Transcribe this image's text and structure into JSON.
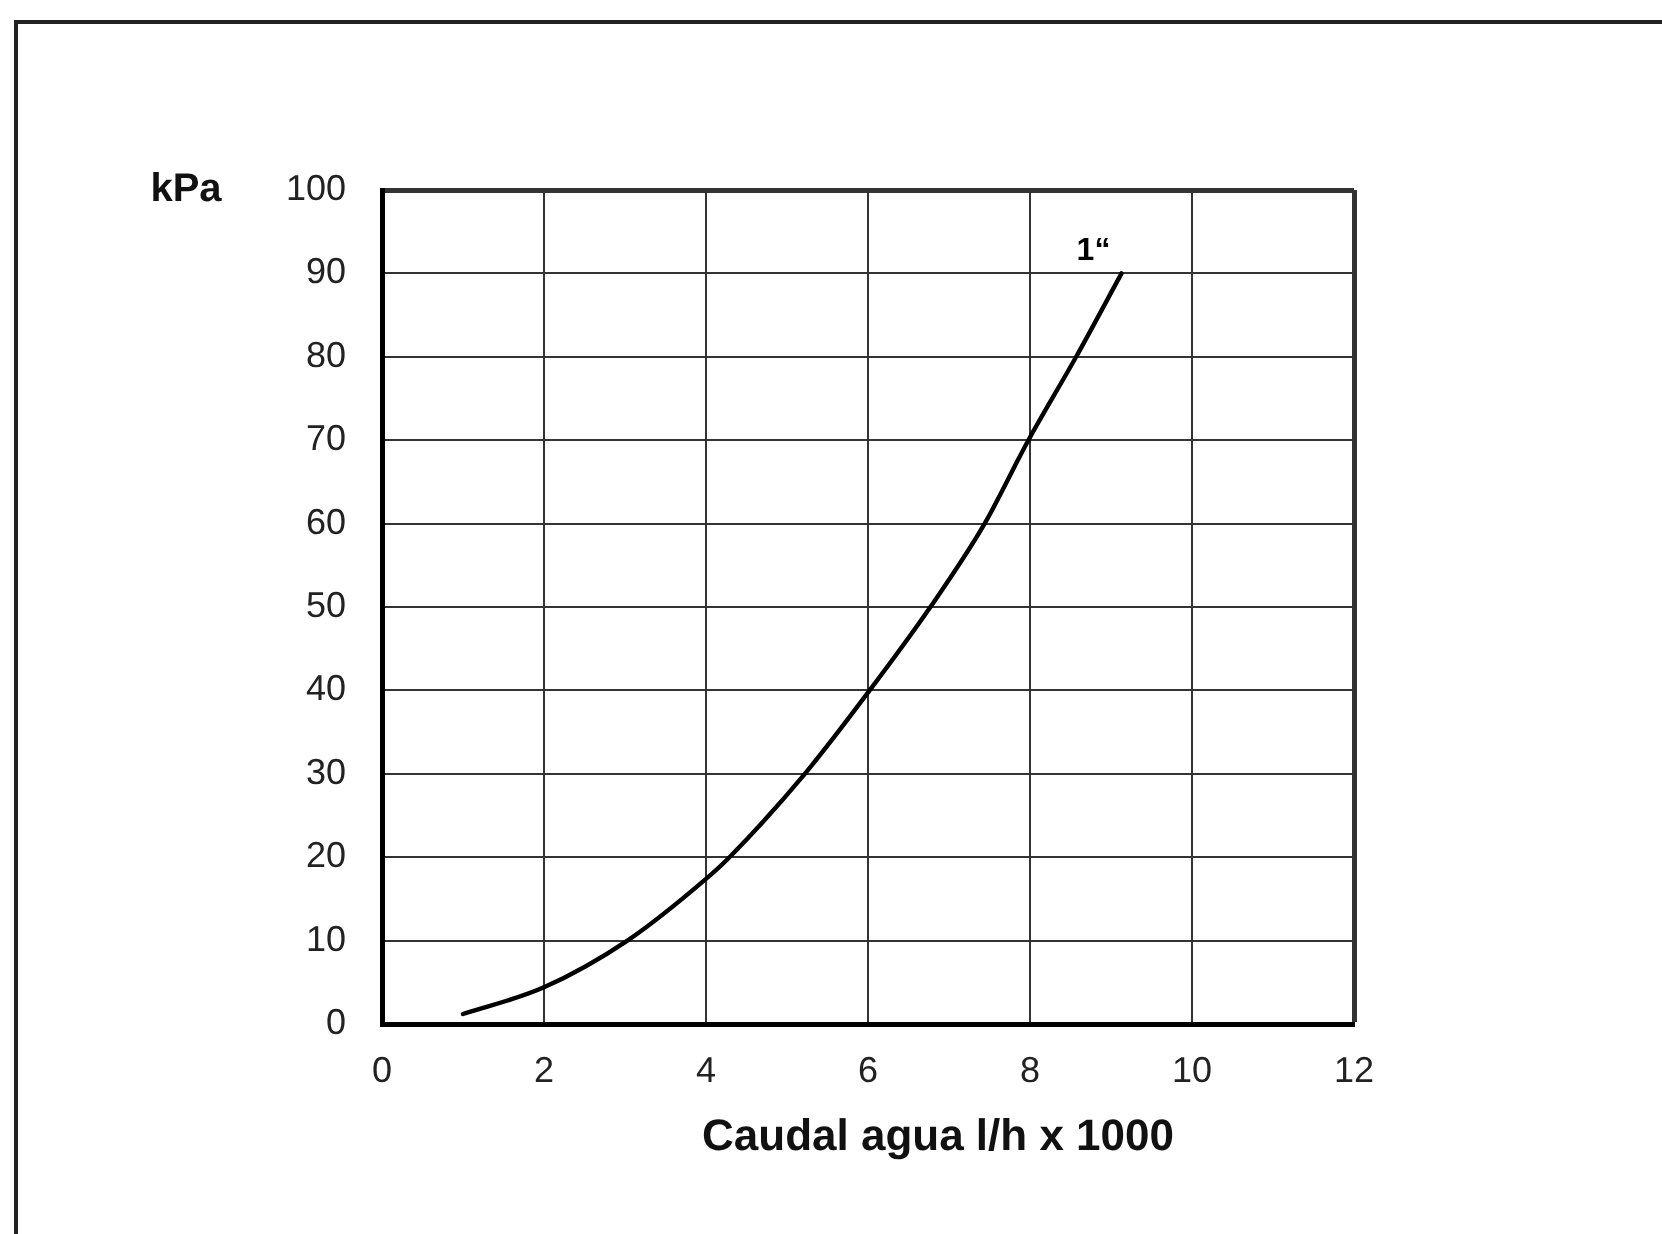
{
  "chart_data": {
    "type": "line",
    "xlabel": "Caudal agua l/h x 1000",
    "ylabel": "kPa",
    "series": [
      {
        "name": "1“",
        "color": "#000000",
        "x": [
          1,
          2,
          3.03,
          4,
          4.29,
          5.22,
          6.02,
          6.77,
          7.44,
          7.98,
          8.57,
          9.13
        ],
        "values": [
          1.2,
          4.4,
          10,
          17.4,
          20,
          30,
          40,
          50,
          60,
          70,
          80,
          90
        ]
      }
    ],
    "xlim": [
      0,
      12
    ],
    "xticks": [
      0,
      2,
      4,
      6,
      8,
      10,
      12
    ],
    "ylim": [
      0,
      100
    ],
    "yticks": [
      0,
      10,
      20,
      30,
      40,
      50,
      60,
      70,
      80,
      90,
      100
    ],
    "grid": true,
    "legend": false,
    "marker": "none",
    "line_style": "solid"
  }
}
